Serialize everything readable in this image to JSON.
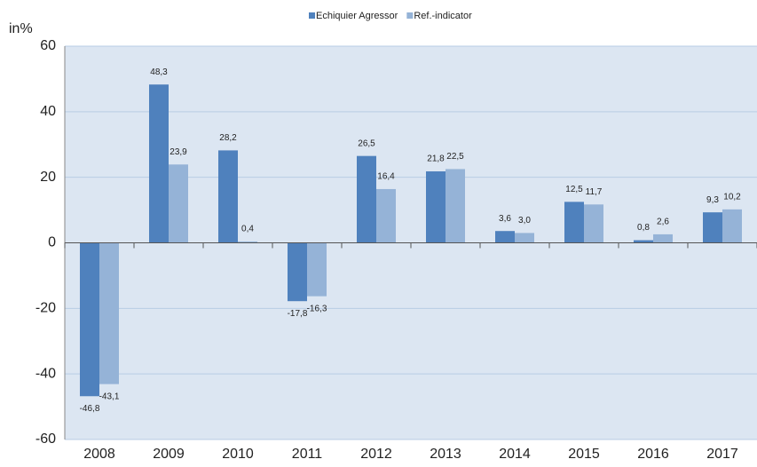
{
  "chart_data": {
    "type": "bar",
    "y_label": "in%",
    "categories": [
      "2008",
      "2009",
      "2010",
      "2011",
      "2012",
      "2013",
      "2014",
      "2015",
      "2016",
      "2017"
    ],
    "series": [
      {
        "name": "Echiquier Agressor",
        "color": "#4f81bd",
        "values": [
          -46.8,
          48.3,
          28.2,
          -17.8,
          26.5,
          21.8,
          3.6,
          12.5,
          0.8,
          9.3
        ],
        "value_labels": [
          "-46,8",
          "48,3",
          "28,2",
          "-17,8",
          "26,5",
          "21,8",
          "3,6",
          "12,5",
          "0,8",
          "9,3"
        ]
      },
      {
        "name": "Ref.-indicator",
        "color": "#95b3d7",
        "values": [
          -43.1,
          23.9,
          0.4,
          -16.3,
          16.4,
          22.5,
          3,
          11.7,
          2.6,
          10.2
        ],
        "value_labels": [
          "-43,1",
          "23,9",
          "0,4",
          "-16,3",
          "16,4",
          "22,5",
          "3,0",
          "11,7",
          "2,6",
          "10,2"
        ]
      }
    ],
    "ylim": [
      -60,
      60
    ],
    "yticks": [
      -60,
      -40,
      -20,
      0,
      20,
      40,
      60
    ],
    "grid": true
  }
}
